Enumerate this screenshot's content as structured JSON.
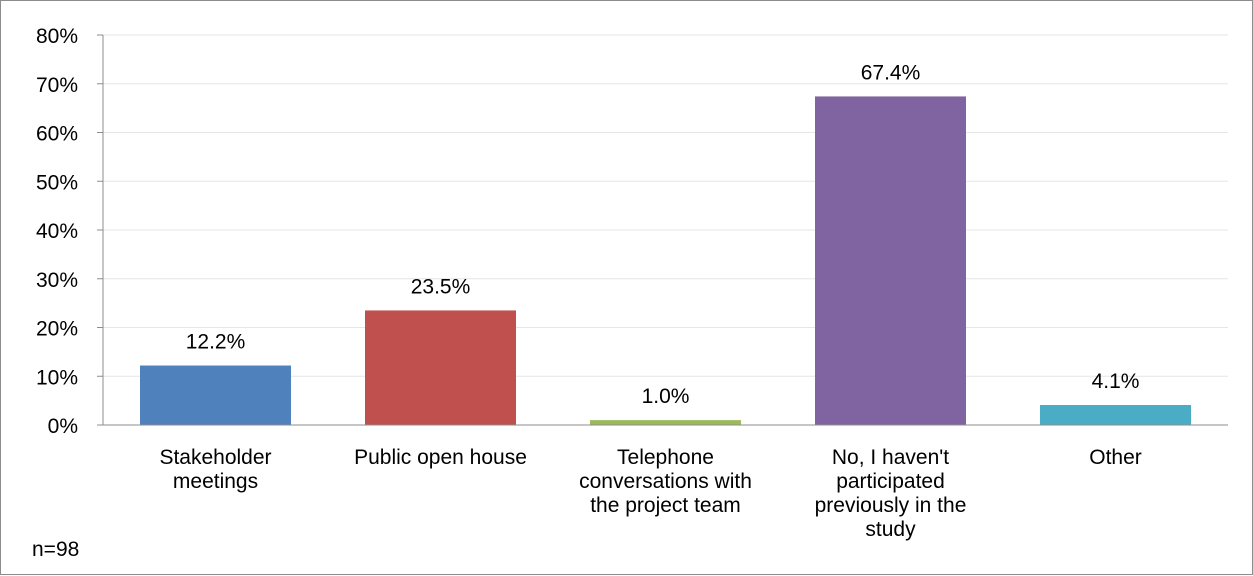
{
  "note": "n=98",
  "chart_data": {
    "type": "bar",
    "categories": [
      [
        "Stakeholder",
        "meetings"
      ],
      [
        "Public open house"
      ],
      [
        "Telephone",
        "conversations with",
        "the project team"
      ],
      [
        "No, I haven't",
        "participated",
        "previously in the",
        "study"
      ],
      [
        "Other"
      ]
    ],
    "values": [
      12.2,
      23.5,
      1.0,
      67.4,
      4.1
    ],
    "data_labels": [
      "12.2%",
      "23.5%",
      "1.0%",
      "67.4%",
      "4.1%"
    ],
    "colors": [
      "#4f81bd",
      "#c0504d",
      "#9bbb59",
      "#8064a2",
      "#4bacc6"
    ],
    "ylim": [
      0,
      80
    ],
    "yticks": [
      "0%",
      "10%",
      "20%",
      "30%",
      "40%",
      "50%",
      "60%",
      "70%",
      "80%"
    ],
    "grid": true,
    "title": "",
    "xlabel": "",
    "ylabel": ""
  }
}
